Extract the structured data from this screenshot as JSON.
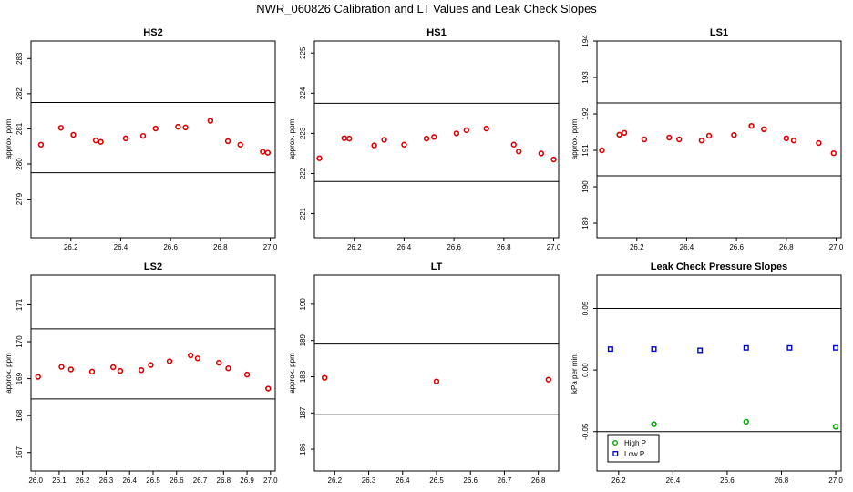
{
  "page_title": "NWR_060826  Calibration and LT Values and Leak Check Slopes",
  "chart_data": [
    {
      "type": "scatter",
      "title": "HS2",
      "ylabel": "approx. ppm",
      "xlim": [
        26.04,
        27.02
      ],
      "ylim": [
        277.9,
        283.5
      ],
      "xticks": [
        "26.2",
        "26.4",
        "26.6",
        "26.8",
        "27.0"
      ],
      "xtick_values": [
        26.2,
        26.4,
        26.6,
        26.8,
        27.0
      ],
      "yticks": [
        "279",
        "280",
        "281",
        "282",
        "283"
      ],
      "ytick_values": [
        279,
        280,
        281,
        282,
        283
      ],
      "hlines": [
        281.75,
        279.75
      ],
      "series": [
        {
          "color": "#dd0000",
          "marker": "circle",
          "x": [
            26.08,
            26.16,
            26.21,
            26.3,
            26.32,
            26.42,
            26.49,
            26.54,
            26.63,
            26.66,
            26.76,
            26.83,
            26.88,
            26.97,
            26.99
          ],
          "y": [
            280.55,
            281.03,
            280.83,
            280.67,
            280.63,
            280.73,
            280.8,
            281.01,
            281.06,
            281.04,
            281.23,
            280.65,
            280.55,
            280.35,
            280.32
          ]
        }
      ]
    },
    {
      "type": "scatter",
      "title": "HS1",
      "ylabel": "approx. ppm",
      "xlim": [
        26.04,
        27.02
      ],
      "ylim": [
        220.4,
        225.3
      ],
      "xticks": [
        "26.2",
        "26.4",
        "26.6",
        "26.8",
        "27.0"
      ],
      "xtick_values": [
        26.2,
        26.4,
        26.6,
        26.8,
        27.0
      ],
      "yticks": [
        "221",
        "222",
        "223",
        "224",
        "225"
      ],
      "ytick_values": [
        221,
        222,
        223,
        224,
        225
      ],
      "hlines": [
        223.75,
        221.8
      ],
      "series": [
        {
          "color": "#dd0000",
          "marker": "circle",
          "x": [
            26.06,
            26.16,
            26.18,
            26.28,
            26.32,
            26.4,
            26.49,
            26.52,
            26.61,
            26.65,
            26.73,
            26.84,
            26.86,
            26.95,
            27.0
          ],
          "y": [
            222.38,
            222.88,
            222.87,
            222.7,
            222.84,
            222.72,
            222.87,
            222.91,
            223.0,
            223.08,
            223.12,
            222.72,
            222.55,
            222.5,
            222.35
          ]
        }
      ]
    },
    {
      "type": "scatter",
      "title": "LS1",
      "ylabel": "approx. ppm",
      "xlim": [
        26.04,
        27.02
      ],
      "ylim": [
        188.6,
        194.0
      ],
      "xticks": [
        "26.2",
        "26.4",
        "26.6",
        "26.8",
        "27.0"
      ],
      "xtick_values": [
        26.2,
        26.4,
        26.6,
        26.8,
        27.0
      ],
      "yticks": [
        "189",
        "190",
        "191",
        "192",
        "193",
        "194"
      ],
      "ytick_values": [
        189,
        190,
        191,
        192,
        193,
        194
      ],
      "hlines": [
        192.3,
        190.3
      ],
      "series": [
        {
          "color": "#dd0000",
          "marker": "circle",
          "x": [
            26.06,
            26.13,
            26.15,
            26.23,
            26.33,
            26.37,
            26.46,
            26.49,
            26.59,
            26.66,
            26.71,
            26.8,
            26.83,
            26.93,
            26.99
          ],
          "y": [
            191.0,
            191.43,
            191.48,
            191.3,
            191.35,
            191.3,
            191.27,
            191.4,
            191.42,
            191.67,
            191.58,
            191.33,
            191.27,
            191.2,
            190.92
          ]
        }
      ]
    },
    {
      "type": "scatter",
      "title": "LS2",
      "ylabel": "approx. ppm",
      "xlim": [
        25.98,
        27.02
      ],
      "ylim": [
        166.5,
        171.8
      ],
      "xticks": [
        "26.0",
        "26.1",
        "26.2",
        "26.3",
        "26.4",
        "26.5",
        "26.6",
        "26.7",
        "26.8",
        "26.9",
        "27.0"
      ],
      "xtick_values": [
        26.0,
        26.1,
        26.2,
        26.3,
        26.4,
        26.5,
        26.6,
        26.7,
        26.8,
        26.9,
        27.0
      ],
      "yticks": [
        "167",
        "168",
        "169",
        "170",
        "171"
      ],
      "ytick_values": [
        167,
        168,
        169,
        170,
        171
      ],
      "hlines": [
        170.35,
        168.45
      ],
      "series": [
        {
          "color": "#dd0000",
          "marker": "circle",
          "x": [
            26.01,
            26.11,
            26.15,
            26.24,
            26.33,
            26.36,
            26.45,
            26.49,
            26.57,
            26.66,
            26.69,
            26.78,
            26.82,
            26.9,
            26.99
          ],
          "y": [
            169.05,
            169.32,
            169.25,
            169.19,
            169.31,
            169.21,
            169.23,
            169.37,
            169.47,
            169.63,
            169.55,
            169.43,
            169.28,
            169.11,
            168.73
          ]
        }
      ]
    },
    {
      "type": "scatter",
      "title": "LT",
      "ylabel": "approx. ppm",
      "xlim": [
        26.14,
        26.86
      ],
      "ylim": [
        185.4,
        190.8
      ],
      "xticks": [
        "26.2",
        "26.3",
        "26.4",
        "26.5",
        "26.6",
        "26.7",
        "26.8"
      ],
      "xtick_values": [
        26.2,
        26.3,
        26.4,
        26.5,
        26.6,
        26.7,
        26.8
      ],
      "yticks": [
        "186",
        "187",
        "188",
        "189",
        "190"
      ],
      "ytick_values": [
        186,
        187,
        188,
        189,
        190
      ],
      "hlines": [
        188.9,
        186.95
      ],
      "series": [
        {
          "color": "#dd0000",
          "marker": "circle",
          "x": [
            26.17,
            26.5,
            26.83
          ],
          "y": [
            187.97,
            187.87,
            187.92
          ]
        }
      ]
    },
    {
      "type": "scatter",
      "title": "Leak Check Pressure Slopes",
      "ylabel": "kPa per min.",
      "xlim": [
        26.12,
        27.02
      ],
      "ylim": [
        -0.082,
        0.077
      ],
      "xticks": [
        "26.2",
        "26.4",
        "26.6",
        "26.8",
        "27.0"
      ],
      "xtick_values": [
        26.2,
        26.4,
        26.6,
        26.8,
        27.0
      ],
      "yticks": [
        "-0.05",
        "0.00",
        "0.05"
      ],
      "ytick_values": [
        -0.05,
        0.0,
        0.05
      ],
      "hlines": [
        0.05,
        -0.05
      ],
      "legend": "bottom-left",
      "series": [
        {
          "name": "High P",
          "color": "#00aa00",
          "marker": "circle",
          "x": [
            26.33,
            26.67,
            27.0
          ],
          "y": [
            -0.044,
            -0.042,
            -0.046
          ]
        },
        {
          "name": "Low P",
          "color": "#0000cc",
          "marker": "square",
          "x": [
            26.17,
            26.33,
            26.5,
            26.67,
            26.83,
            27.0
          ],
          "y": [
            0.017,
            0.017,
            0.016,
            0.018,
            0.018,
            0.018
          ]
        }
      ]
    }
  ]
}
